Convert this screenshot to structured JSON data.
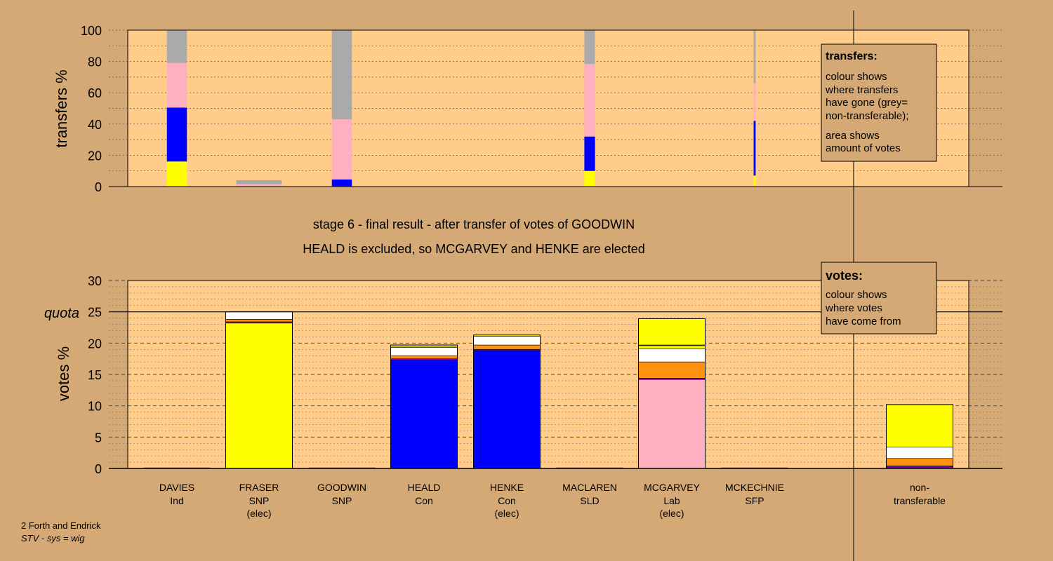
{
  "title_line1": "stage 6 - final result - after transfer of votes of GOODWIN",
  "title_line2": "HEALD is excluded, so MCGARVEY and HENKE are elected",
  "footer": {
    "line1": "2 Forth and Endrick",
    "line2": "STV - sys = wig"
  },
  "colors": {
    "background": "#d5a976",
    "plot_background": "#ffcc8a",
    "SNP": "#ffff00",
    "Con": "#0000ff",
    "Lab": "#ffb0c0",
    "other_orange": "#ff9010",
    "white": "#ffffff",
    "purple": "#8000a0",
    "non_transferable": "#aaaaaa",
    "dark_red": "#9b2a00"
  },
  "top_legend": {
    "title": "transfers:",
    "lines": [
      "colour shows",
      "where transfers",
      "have gone (grey=",
      "non-transferable);"
    ],
    "lines2": [
      "area shows",
      "amount of votes"
    ]
  },
  "bottom_legend": {
    "title": "votes:",
    "lines": [
      "colour shows",
      "where votes",
      "have come from"
    ]
  },
  "chart_data": [
    {
      "type": "bar",
      "ylabel": "transfers %",
      "ylim": [
        0,
        100
      ],
      "yticks": [
        0,
        20,
        40,
        60,
        80,
        100
      ],
      "grid": "dotted",
      "bars": [
        {
          "slot": 0,
          "width": 0.3,
          "segments": [
            {
              "c": "SNP",
              "v": 16
            },
            {
              "c": "Con",
              "v": 34.5
            },
            {
              "c": "Lab",
              "v": 28.5
            },
            {
              "c": "non_transferable",
              "v": 21
            }
          ]
        },
        {
          "slot": 1,
          "width": 0.68,
          "segments": [
            {
              "c": "Lab",
              "v": 1.5
            },
            {
              "c": "non_transferable",
              "v": 2.5
            }
          ]
        },
        {
          "slot": 2,
          "width": 0.3,
          "segments": [
            {
              "c": "Con",
              "v": 4.5
            },
            {
              "c": "Lab",
              "v": 38.5
            },
            {
              "c": "non_transferable",
              "v": 57
            }
          ]
        },
        {
          "slot": 5,
          "width": 0.16,
          "segments": [
            {
              "c": "SNP",
              "v": 10
            },
            {
              "c": "Con",
              "v": 22
            },
            {
              "c": "Lab",
              "v": 46.5
            },
            {
              "c": "non_transferable",
              "v": 21.5
            }
          ]
        },
        {
          "slot": 7,
          "width": 0.03,
          "segments": [
            {
              "c": "SNP",
              "v": 7
            },
            {
              "c": "Con",
              "v": 35
            },
            {
              "c": "Lab",
              "v": 24
            },
            {
              "c": "non_transferable",
              "v": 34
            }
          ]
        }
      ]
    },
    {
      "type": "bar",
      "ylabel": "votes %",
      "ylim": [
        0,
        30
      ],
      "yticks": [
        0,
        5,
        10,
        15,
        20,
        25,
        30
      ],
      "quota": 25,
      "quota_label": "quota",
      "candidates": [
        {
          "name": "DAVIES",
          "party": "Ind",
          "status": "",
          "segments": []
        },
        {
          "name": "FRASER",
          "party": "SNP",
          "status": "(elec)",
          "segments": [
            {
              "c": "SNP",
              "v": 23.2
            },
            {
              "c": "dark_red",
              "v": 0.2
            },
            {
              "c": "other_orange",
              "v": 0.4
            },
            {
              "c": "white",
              "v": 1.2
            }
          ]
        },
        {
          "name": "GOODWIN",
          "party": "SNP",
          "status": "",
          "segments": []
        },
        {
          "name": "HEALD",
          "party": "Con",
          "status": "",
          "segments": [
            {
              "c": "Con",
              "v": 17.3
            },
            {
              "c": "purple",
              "v": 0.2
            },
            {
              "c": "other_orange",
              "v": 0.5
            },
            {
              "c": "white",
              "v": 1.3
            },
            {
              "c": "SNP",
              "v": 0.2
            },
            {
              "c": "white",
              "v": 0.2
            }
          ]
        },
        {
          "name": "HENKE",
          "party": "Con",
          "status": "(elec)",
          "segments": [
            {
              "c": "Con",
              "v": 18.8
            },
            {
              "c": "purple",
              "v": 0.2
            },
            {
              "c": "other_orange",
              "v": 0.7
            },
            {
              "c": "white",
              "v": 1.4
            },
            {
              "c": "SNP",
              "v": 0.2
            }
          ]
        },
        {
          "name": "MACLAREN",
          "party": "SLD",
          "status": "",
          "segments": []
        },
        {
          "name": "MCGARVEY",
          "party": "Lab",
          "status": "(elec)",
          "segments": [
            {
              "c": "Lab",
              "v": 14.2
            },
            {
              "c": "purple",
              "v": 0.2
            },
            {
              "c": "other_orange",
              "v": 2.6
            },
            {
              "c": "white",
              "v": 2.1
            },
            {
              "c": "SNP",
              "v": 0.5
            },
            {
              "c": "white",
              "v": 0.1
            },
            {
              "c": "SNP",
              "v": 4.2
            }
          ]
        },
        {
          "name": "MCKECHNIE",
          "party": "SFP",
          "status": "",
          "segments": []
        }
      ],
      "non_transferable": {
        "label1": "non-",
        "label2": "transferable",
        "segments": [
          {
            "c": "purple",
            "v": 0.4
          },
          {
            "c": "other_orange",
            "v": 1.2
          },
          {
            "c": "white",
            "v": 1.8
          },
          {
            "c": "SNP",
            "v": 6.8
          }
        ]
      }
    }
  ]
}
